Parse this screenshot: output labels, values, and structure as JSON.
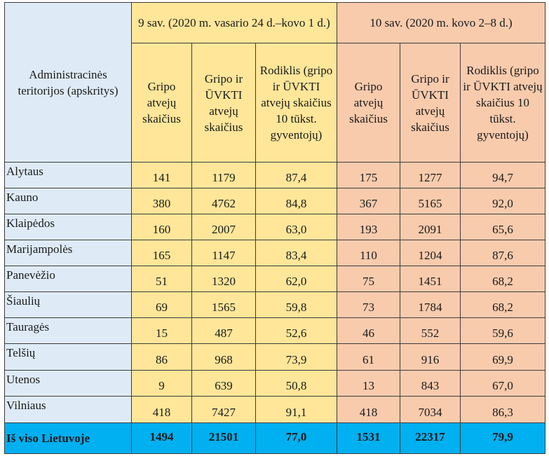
{
  "header": {
    "region_label": "Administracinės teritorijos (apskritys)",
    "week9_title": "9 sav. (2020 m. vasario 24 d.–kovo 1 d.)",
    "week10_title": "10 sav. (2020 m. kovo 2–8 d.)",
    "col_flu": "Gripo atvejų skaičius",
    "col_flu_ari": "Gripo ir ŪVKTI atvejų skaičius",
    "col_rate": "Rodiklis (gripo ir ŪVKTI atvejų skaičius 10 tūkst. gyventojų)"
  },
  "rows": [
    {
      "region": "Alytaus",
      "w9_flu": "141",
      "w9_total": "1179",
      "w9_rate": "87,4",
      "w10_flu": "175",
      "w10_total": "1277",
      "w10_rate": "94,7"
    },
    {
      "region": "Kauno",
      "w9_flu": "380",
      "w9_total": "4762",
      "w9_rate": "84,8",
      "w10_flu": "367",
      "w10_total": "5165",
      "w10_rate": "92,0"
    },
    {
      "region": "Klaipėdos",
      "w9_flu": "160",
      "w9_total": "2007",
      "w9_rate": "63,0",
      "w10_flu": "193",
      "w10_total": "2091",
      "w10_rate": "65,6"
    },
    {
      "region": "Marijampolės",
      "w9_flu": "165",
      "w9_total": "1147",
      "w9_rate": "83,4",
      "w10_flu": "110",
      "w10_total": "1204",
      "w10_rate": "87,6"
    },
    {
      "region": "Panevėžio",
      "w9_flu": "51",
      "w9_total": "1320",
      "w9_rate": "62,0",
      "w10_flu": "75",
      "w10_total": "1451",
      "w10_rate": "68,2"
    },
    {
      "region": "Šiaulių",
      "w9_flu": "69",
      "w9_total": "1565",
      "w9_rate": "59,8",
      "w10_flu": "73",
      "w10_total": "1784",
      "w10_rate": "68,2"
    },
    {
      "region": "Tauragės",
      "w9_flu": "15",
      "w9_total": "487",
      "w9_rate": "52,6",
      "w10_flu": "46",
      "w10_total": "552",
      "w10_rate": "59,6"
    },
    {
      "region": "Telšių",
      "w9_flu": "86",
      "w9_total": "968",
      "w9_rate": "73,9",
      "w10_flu": "61",
      "w10_total": "916",
      "w10_rate": "69,9"
    },
    {
      "region": "Utenos",
      "w9_flu": "9",
      "w9_total": "639",
      "w9_rate": "50,8",
      "w10_flu": "13",
      "w10_total": "843",
      "w10_rate": "67,0"
    },
    {
      "region": "Vilniaus",
      "w9_flu": "418",
      "w9_total": "7427",
      "w9_rate": "91,1",
      "w10_flu": "418",
      "w10_total": "7034",
      "w10_rate": "86,3"
    }
  ],
  "total": {
    "region": "Iš viso Lietuvoje",
    "w9_flu": "1494",
    "w9_total": "21501",
    "w9_rate": "77,0",
    "w10_flu": "1531",
    "w10_total": "22317",
    "w10_rate": "79,9"
  },
  "colors": {
    "region_fill": "#deebf7",
    "week9_fill": "#ffe699",
    "week10_fill": "#f8cbad",
    "total_fill": "#00b0f0"
  }
}
